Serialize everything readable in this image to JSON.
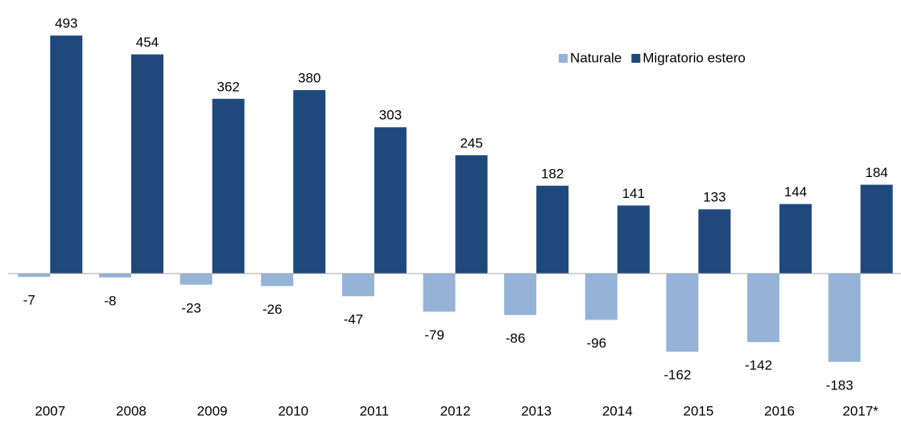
{
  "chart_data": {
    "type": "bar",
    "categories": [
      "2007",
      "2008",
      "2009",
      "2010",
      "2011",
      "2012",
      "2013",
      "2014",
      "2015",
      "2016",
      "2017*"
    ],
    "series": [
      {
        "name": "Naturale",
        "color": "#95b3d7",
        "values": [
          -7,
          -8,
          -23,
          -26,
          -47,
          -79,
          -86,
          -96,
          -162,
          -142,
          -183
        ]
      },
      {
        "name": "Migratorio estero",
        "color": "#1f497d",
        "values": [
          493,
          454,
          362,
          380,
          303,
          245,
          182,
          141,
          133,
          144,
          184
        ]
      }
    ],
    "ylim": [
      -200,
      520
    ],
    "legend": "top-right"
  }
}
